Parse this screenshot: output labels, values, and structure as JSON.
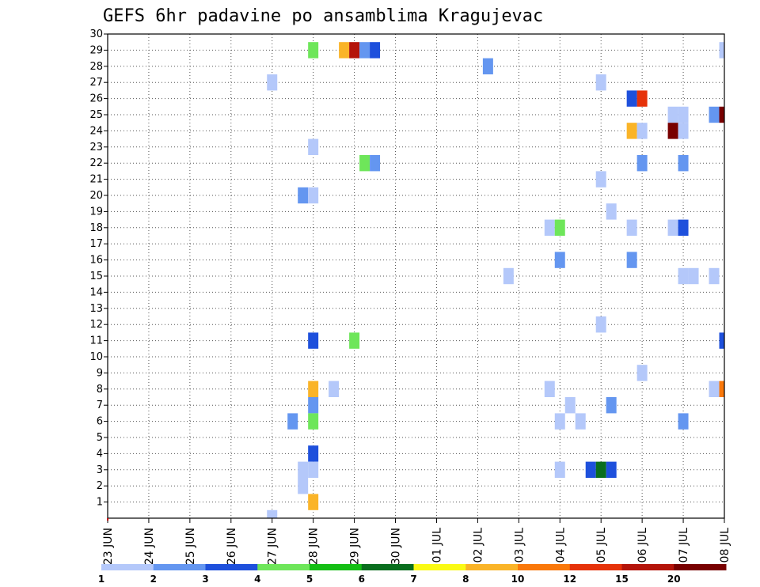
{
  "chart_data": {
    "type": "heatmap",
    "title": "GEFS 6hr padavine po ansamblima Kragujevac",
    "x_labels": [
      "23 JUN",
      "24 JUN",
      "25 JUN",
      "26 JUN",
      "27 JUN",
      "28 JUN",
      "29 JUN",
      "30 JUN",
      "01 JUL",
      "02 JUL",
      "03 JUL",
      "04 JUL",
      "05 JUL",
      "06 JUL",
      "07 JUL",
      "08 JUL"
    ],
    "y_labels": [
      "1",
      "2",
      "3",
      "4",
      "5",
      "6",
      "7",
      "8",
      "9",
      "10",
      "11",
      "12",
      "13",
      "14",
      "15",
      "16",
      "17",
      "18",
      "19",
      "20",
      "21",
      "22",
      "23",
      "24",
      "25",
      "26",
      "27",
      "28",
      "29",
      "30"
    ],
    "y_range": [
      0,
      30
    ],
    "steps_per_day": 4,
    "grid": true,
    "legend_position": "bottom",
    "colorbar": {
      "colors": [
        "#b4c8fa",
        "#6496f0",
        "#1e50dc",
        "#6ee65a",
        "#14be14",
        "#0a6e1e",
        "#fafa14",
        "#fab428",
        "#fa780a",
        "#e6320a",
        "#b4140a",
        "#780000"
      ],
      "labels": [
        "1",
        "2",
        "3",
        "4",
        "5",
        "6",
        "7",
        "8",
        "10",
        "12",
        "15",
        "20"
      ]
    },
    "cells": [
      {
        "member": 29,
        "time": "28 JUN 00",
        "cat": 4
      },
      {
        "member": 29,
        "time": "28 JUN 18",
        "cat": 8
      },
      {
        "member": 29,
        "time": "29 JUN 00",
        "cat": 11
      },
      {
        "member": 29,
        "time": "29 JUN 06",
        "cat": 2
      },
      {
        "member": 29,
        "time": "29 JUN 12",
        "cat": 3
      },
      {
        "member": 29,
        "time": "08 JUL 00",
        "cat": 1
      },
      {
        "member": 28,
        "time": "02 JUL 06",
        "cat": 2
      },
      {
        "member": 27,
        "time": "27 JUN 00",
        "cat": 1
      },
      {
        "member": 27,
        "time": "05 JUL 00",
        "cat": 1
      },
      {
        "member": 26,
        "time": "05 JUL 18",
        "cat": 3
      },
      {
        "member": 26,
        "time": "06 JUL 00",
        "cat": 10
      },
      {
        "member": 25,
        "time": "06 JUL 18",
        "cat": 1
      },
      {
        "member": 25,
        "time": "07 JUL 00",
        "cat": 1
      },
      {
        "member": 25,
        "time": "07 JUL 18",
        "cat": 2
      },
      {
        "member": 25,
        "time": "08 JUL 00",
        "cat": 12
      },
      {
        "member": 24,
        "time": "05 JUL 18",
        "cat": 8
      },
      {
        "member": 24,
        "time": "06 JUL 00",
        "cat": 1
      },
      {
        "member": 24,
        "time": "06 JUL 18",
        "cat": 12
      },
      {
        "member": 24,
        "time": "07 JUL 00",
        "cat": 1
      },
      {
        "member": 23,
        "time": "28 JUN 00",
        "cat": 1
      },
      {
        "member": 22,
        "time": "29 JUN 06",
        "cat": 4
      },
      {
        "member": 22,
        "time": "29 JUN 12",
        "cat": 2
      },
      {
        "member": 22,
        "time": "06 JUL 00",
        "cat": 2
      },
      {
        "member": 22,
        "time": "07 JUL 00",
        "cat": 2
      },
      {
        "member": 21,
        "time": "05 JUL 00",
        "cat": 1
      },
      {
        "member": 20,
        "time": "27 JUN 18",
        "cat": 2
      },
      {
        "member": 20,
        "time": "28 JUN 00",
        "cat": 1
      },
      {
        "member": 19,
        "time": "05 JUL 06",
        "cat": 1
      },
      {
        "member": 18,
        "time": "03 JUL 18",
        "cat": 1
      },
      {
        "member": 18,
        "time": "04 JUL 00",
        "cat": 4
      },
      {
        "member": 18,
        "time": "05 JUL 18",
        "cat": 1
      },
      {
        "member": 18,
        "time": "06 JUL 18",
        "cat": 1
      },
      {
        "member": 18,
        "time": "07 JUL 00",
        "cat": 3
      },
      {
        "member": 16,
        "time": "04 JUL 00",
        "cat": 2
      },
      {
        "member": 16,
        "time": "05 JUL 18",
        "cat": 2
      },
      {
        "member": 15,
        "time": "02 JUL 18",
        "cat": 1
      },
      {
        "member": 15,
        "time": "07 JUL 00",
        "cat": 1
      },
      {
        "member": 15,
        "time": "07 JUL 06",
        "cat": 1
      },
      {
        "member": 15,
        "time": "07 JUL 18",
        "cat": 1
      },
      {
        "member": 12,
        "time": "05 JUL 00",
        "cat": 1
      },
      {
        "member": 11,
        "time": "28 JUN 00",
        "cat": 3
      },
      {
        "member": 11,
        "time": "29 JUN 00",
        "cat": 4
      },
      {
        "member": 11,
        "time": "08 JUL 00",
        "cat": 3
      },
      {
        "member": 9,
        "time": "06 JUL 00",
        "cat": 1
      },
      {
        "member": 8,
        "time": "28 JUN 00",
        "cat": 8
      },
      {
        "member": 8,
        "time": "28 JUN 12",
        "cat": 1
      },
      {
        "member": 8,
        "time": "03 JUL 18",
        "cat": 1
      },
      {
        "member": 8,
        "time": "07 JUL 18",
        "cat": 1
      },
      {
        "member": 8,
        "time": "08 JUL 00",
        "cat": 9
      },
      {
        "member": 7,
        "time": "28 JUN 00",
        "cat": 2
      },
      {
        "member": 7,
        "time": "04 JUL 06",
        "cat": 1
      },
      {
        "member": 7,
        "time": "05 JUL 06",
        "cat": 2
      },
      {
        "member": 6,
        "time": "27 JUN 12",
        "cat": 2
      },
      {
        "member": 6,
        "time": "28 JUN 00",
        "cat": 4
      },
      {
        "member": 6,
        "time": "04 JUL 00",
        "cat": 1
      },
      {
        "member": 6,
        "time": "04 JUL 12",
        "cat": 1
      },
      {
        "member": 6,
        "time": "07 JUL 00",
        "cat": 2
      },
      {
        "member": 4,
        "time": "28 JUN 00",
        "cat": 3
      },
      {
        "member": 3,
        "time": "27 JUN 18",
        "cat": 1
      },
      {
        "member": 3,
        "time": "28 JUN 00",
        "cat": 1
      },
      {
        "member": 3,
        "time": "04 JUL 00",
        "cat": 1
      },
      {
        "member": 3,
        "time": "04 JUL 18",
        "cat": 3
      },
      {
        "member": 3,
        "time": "05 JUL 00",
        "cat": 6
      },
      {
        "member": 3,
        "time": "05 JUL 06",
        "cat": 3
      },
      {
        "member": 2,
        "time": "27 JUN 18",
        "cat": 1
      },
      {
        "member": 1,
        "time": "28 JUN 00",
        "cat": 8
      },
      {
        "member": 0,
        "time": "27 JUN 00",
        "cat": 1
      }
    ]
  }
}
